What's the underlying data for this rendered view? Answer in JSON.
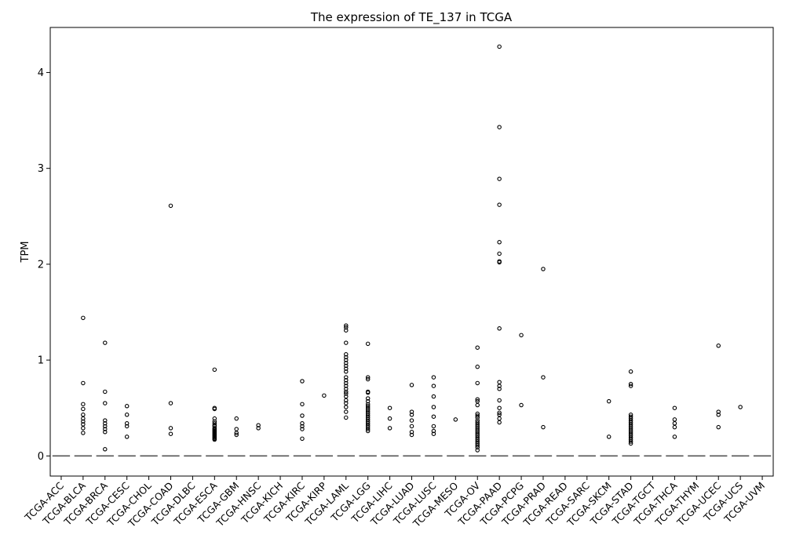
{
  "chart_data": {
    "type": "box",
    "title": "The expression of TE_137 in TCGA",
    "xlabel": "",
    "ylabel": "TPM",
    "ylim": [
      -0.21,
      4.47
    ],
    "yticks": [
      0,
      1,
      2,
      3,
      4
    ],
    "grid": false,
    "categories": [
      "TCGA-ACC",
      "TCGA-BLCA",
      "TCGA-BRCA",
      "TCGA-CESC",
      "TCGA-CHOL",
      "TCGA-COAD",
      "TCGA-DLBC",
      "TCGA-ESCA",
      "TCGA-GBM",
      "TCGA-HNSC",
      "TCGA-KICH",
      "TCGA-KIRC",
      "TCGA-KIRP",
      "TCGA-LAML",
      "TCGA-LGG",
      "TCGA-LIHC",
      "TCGA-LUAD",
      "TCGA-LUSC",
      "TCGA-MESO",
      "TCGA-OV",
      "TCGA-PAAD",
      "TCGA-PCPG",
      "TCGA-PRAD",
      "TCGA-READ",
      "TCGA-SARC",
      "TCGA-SKCM",
      "TCGA-STAD",
      "TCGA-TGCT",
      "TCGA-THCA",
      "TCGA-THYM",
      "TCGA-UCEC",
      "TCGA-UCS",
      "TCGA-UVM"
    ],
    "medians": [
      0,
      0,
      0,
      0,
      0,
      0,
      0,
      0,
      0,
      0,
      0,
      0,
      0,
      0,
      0,
      0,
      0,
      0,
      0,
      0,
      0,
      0,
      0,
      0,
      0,
      0,
      0,
      0,
      0,
      0,
      0,
      0,
      0
    ],
    "outliers": [
      [],
      [
        1.44,
        0.76,
        0.54,
        0.49,
        0.43,
        0.39,
        0.36,
        0.33,
        0.29,
        0.24
      ],
      [
        1.18,
        0.67,
        0.55,
        0.37,
        0.34,
        0.31,
        0.28,
        0.25,
        0.07
      ],
      [
        0.52,
        0.43,
        0.34,
        0.31,
        0.2
      ],
      [],
      [
        2.61,
        0.55,
        0.29,
        0.23
      ],
      [],
      [
        0.9,
        0.5,
        0.49,
        0.39,
        0.36,
        0.34,
        0.32,
        0.31,
        0.29,
        0.28,
        0.27,
        0.26,
        0.25,
        0.24,
        0.23,
        0.22,
        0.21,
        0.2,
        0.19,
        0.18,
        0.17
      ],
      [
        0.39,
        0.28,
        0.24,
        0.22
      ],
      [
        0.32,
        0.29
      ],
      [],
      [
        0.78,
        0.54,
        0.42,
        0.34,
        0.31,
        0.28,
        0.18
      ],
      [
        0.63
      ],
      [
        1.36,
        1.34,
        1.31,
        1.18,
        1.06,
        1.03,
        1.0,
        0.97,
        0.94,
        0.91,
        0.88,
        0.82,
        0.79,
        0.76,
        0.73,
        0.7,
        0.67,
        0.65,
        0.62,
        0.58,
        0.55,
        0.51,
        0.46,
        0.4
      ],
      [
        1.17,
        0.82,
        0.8,
        0.67,
        0.66,
        0.6,
        0.57,
        0.54,
        0.52,
        0.5,
        0.48,
        0.46,
        0.44,
        0.42,
        0.4,
        0.38,
        0.36,
        0.34,
        0.32,
        0.3,
        0.28,
        0.26
      ],
      [
        0.5,
        0.39,
        0.29
      ],
      [
        0.74,
        0.46,
        0.43,
        0.37,
        0.31,
        0.25,
        0.22
      ],
      [
        0.82,
        0.73,
        0.62,
        0.51,
        0.41,
        0.31,
        0.26,
        0.23
      ],
      [
        0.38
      ],
      [
        1.13,
        0.93,
        0.76,
        0.59,
        0.57,
        0.53,
        0.44,
        0.42,
        0.4,
        0.37,
        0.35,
        0.33,
        0.31,
        0.29,
        0.27,
        0.25,
        0.23,
        0.21,
        0.19,
        0.17,
        0.15,
        0.13,
        0.11,
        0.09,
        0.06
      ],
      [
        4.27,
        3.43,
        2.89,
        2.62,
        2.23,
        2.11,
        2.03,
        2.02,
        1.33,
        0.77,
        0.73,
        0.7,
        0.58,
        0.5,
        0.45,
        0.43,
        0.39,
        0.35
      ],
      [
        1.26,
        0.53
      ],
      [
        1.95,
        0.82,
        0.3
      ],
      [],
      [],
      [
        0.57,
        0.2
      ],
      [
        0.88,
        0.75,
        0.73,
        0.43,
        0.41,
        0.39,
        0.37,
        0.35,
        0.33,
        0.31,
        0.29,
        0.27,
        0.25,
        0.23,
        0.21,
        0.19,
        0.17,
        0.15,
        0.13
      ],
      [],
      [
        0.5,
        0.38,
        0.34,
        0.3,
        0.2
      ],
      [],
      [
        1.15,
        0.46,
        0.43,
        0.3
      ],
      [
        0.51
      ],
      []
    ]
  }
}
